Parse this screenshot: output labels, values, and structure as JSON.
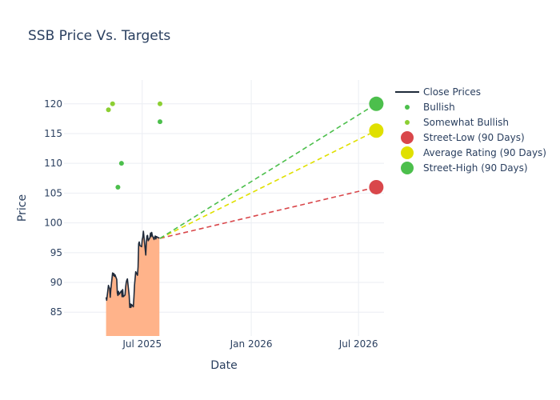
{
  "chart_data": {
    "type": "line",
    "title": "SSB Price Vs. Targets",
    "xlabel": "Date",
    "ylabel": "Price",
    "xlim": [
      "2025-02-19",
      "2026-08-13"
    ],
    "ylim": [
      81,
      124
    ],
    "grid": true,
    "legend_position": "right",
    "x_ticks": [
      {
        "date": "2025-07-01",
        "label": "Jul 2025"
      },
      {
        "date": "2026-01-01",
        "label": "Jan 2026"
      },
      {
        "date": "2026-07-01",
        "label": "Jul 2026"
      }
    ],
    "y_ticks": [
      85,
      90,
      95,
      100,
      105,
      110,
      115,
      120
    ],
    "close_prices": {
      "name": "Close Prices",
      "color": "#1f2a3a",
      "fill_color": "#ffb38a",
      "dates": [
        "2025-05-01",
        "2025-05-02",
        "2025-05-05",
        "2025-05-06",
        "2025-05-07",
        "2025-05-08",
        "2025-05-09",
        "2025-05-12",
        "2025-05-13",
        "2025-05-14",
        "2025-05-15",
        "2025-05-16",
        "2025-05-19",
        "2025-05-20",
        "2025-05-21",
        "2025-05-22",
        "2025-05-23",
        "2025-05-27",
        "2025-05-28",
        "2025-05-29",
        "2025-05-30",
        "2025-06-02",
        "2025-06-03",
        "2025-06-04",
        "2025-06-05",
        "2025-06-06",
        "2025-06-09",
        "2025-06-10",
        "2025-06-11",
        "2025-06-12",
        "2025-06-13",
        "2025-06-16",
        "2025-06-17",
        "2025-06-18",
        "2025-06-20",
        "2025-06-23",
        "2025-06-24",
        "2025-06-25",
        "2025-06-26",
        "2025-06-27",
        "2025-06-30",
        "2025-07-01",
        "2025-07-02",
        "2025-07-03",
        "2025-07-07",
        "2025-07-08",
        "2025-07-09",
        "2025-07-10",
        "2025-07-11",
        "2025-07-14",
        "2025-07-15",
        "2025-07-16",
        "2025-07-17",
        "2025-07-18",
        "2025-07-21",
        "2025-07-22",
        "2025-07-23",
        "2025-07-24",
        "2025-07-25",
        "2025-07-28",
        "2025-07-29",
        "2025-07-30"
      ],
      "values": [
        87.5,
        87.0,
        89.5,
        89.2,
        89.0,
        87.5,
        88.8,
        91.6,
        91.2,
        91.5,
        91.0,
        91.3,
        90.5,
        88.2,
        87.8,
        88.5,
        88.0,
        88.6,
        87.6,
        88.8,
        87.6,
        87.9,
        89.2,
        90.0,
        90.4,
        90.6,
        87.8,
        85.8,
        86.4,
        85.8,
        86.3,
        85.9,
        87.5,
        89.5,
        91.8,
        91.2,
        92.6,
        96.5,
        96.8,
        96.2,
        96.0,
        97.2,
        97.6,
        98.6,
        94.6,
        96.8,
        97.8,
        97.9,
        97.0,
        97.5,
        98.3,
        97.7,
        98.4,
        97.9,
        97.2,
        97.6,
        97.8,
        97.3,
        97.7,
        97.5,
        97.5,
        97.4
      ]
    },
    "bullish": {
      "name": "Bullish",
      "color": "#4cbf4c",
      "points": [
        {
          "date": "2025-05-21",
          "value": 106
        },
        {
          "date": "2025-05-27",
          "value": 110
        },
        {
          "date": "2025-07-31",
          "value": 117
        }
      ]
    },
    "somewhat_bullish": {
      "name": "Somewhat Bullish",
      "color": "#8ccf33",
      "points": [
        {
          "date": "2025-05-05",
          "value": 119
        },
        {
          "date": "2025-05-12",
          "value": 120
        },
        {
          "date": "2025-07-31",
          "value": 120
        }
      ]
    },
    "targets": {
      "start": {
        "date": "2025-07-31",
        "value": 97.4
      },
      "end_date": "2026-07-31",
      "series": [
        {
          "name": "Street-Low (90 Days)",
          "value": 106,
          "color": "#d9474b"
        },
        {
          "name": "Average Rating (90 Days)",
          "value": 115.5,
          "color": "#e0e000"
        },
        {
          "name": "Street-High (90 Days)",
          "value": 120,
          "color": "#4cbf4c"
        }
      ]
    }
  }
}
